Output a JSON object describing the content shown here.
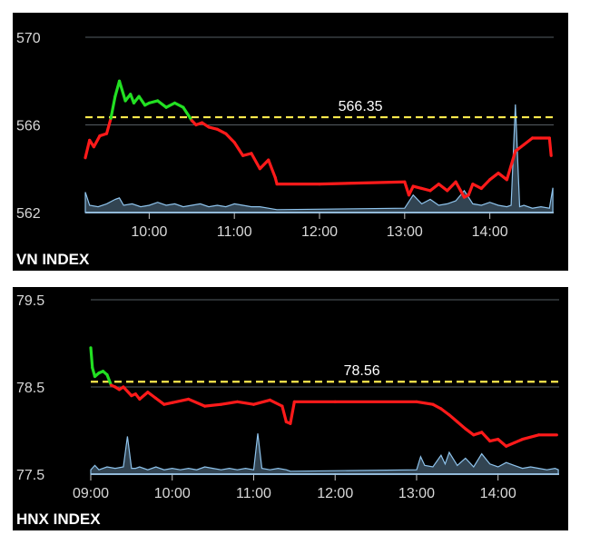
{
  "chart_data": [
    {
      "type": "line",
      "title": "VN INDEX",
      "reference_value": 566.35,
      "reference_label": "566.35",
      "ylim": [
        562,
        570
      ],
      "yticks": [
        562,
        566,
        570
      ],
      "ytick_labels": [
        "562",
        "566",
        "570"
      ],
      "xlim": [
        9.25,
        14.75
      ],
      "xticks": [
        10,
        11,
        12,
        13,
        14
      ],
      "xtick_labels": [
        "10:00",
        "11:00",
        "12:00",
        "13:00",
        "14:00"
      ],
      "grid": "horizontal",
      "colors": {
        "up": "#22e022",
        "down": "#ff1a1a",
        "reference": "#ffe94d",
        "volume": "#8ec3ec"
      },
      "series": [
        {
          "kind": "price",
          "x": [
            9.25,
            9.3,
            9.35,
            9.42,
            9.5,
            9.55,
            9.6,
            9.65,
            9.72,
            9.78,
            9.82,
            9.88,
            9.95,
            10.0,
            10.1,
            10.2,
            10.3,
            10.4,
            10.5,
            10.55,
            10.62,
            10.7,
            10.8,
            10.9,
            11.0,
            11.1,
            11.2,
            11.3,
            11.4,
            11.48,
            11.5,
            12.0,
            13.0,
            13.05,
            13.1,
            13.2,
            13.3,
            13.4,
            13.5,
            13.6,
            13.7,
            13.75,
            13.8,
            13.9,
            14.0,
            14.1,
            14.2,
            14.3,
            14.4,
            14.5,
            14.6,
            14.7,
            14.72
          ],
          "y": [
            564.5,
            565.3,
            565.0,
            565.5,
            565.6,
            566.3,
            567.3,
            568.0,
            567.1,
            567.4,
            567.0,
            567.3,
            566.9,
            567.0,
            567.1,
            566.8,
            567.0,
            566.8,
            566.2,
            566.0,
            566.1,
            565.9,
            565.8,
            565.6,
            565.2,
            564.6,
            564.7,
            564.0,
            564.4,
            563.6,
            563.3,
            563.3,
            563.4,
            562.8,
            563.2,
            563.1,
            563.0,
            563.3,
            563.0,
            563.4,
            562.7,
            562.8,
            563.3,
            563.1,
            563.5,
            563.8,
            563.5,
            564.8,
            565.1,
            565.4,
            565.4,
            565.4,
            564.6
          ]
        },
        {
          "kind": "volume",
          "x": [
            9.25,
            9.3,
            9.4,
            9.5,
            9.6,
            9.65,
            9.7,
            9.8,
            9.9,
            10.0,
            10.1,
            10.2,
            10.3,
            10.4,
            10.5,
            10.6,
            10.7,
            10.8,
            10.9,
            11.0,
            11.1,
            11.2,
            11.3,
            11.4,
            11.5,
            13.0,
            13.1,
            13.2,
            13.3,
            13.4,
            13.5,
            13.6,
            13.7,
            13.8,
            13.9,
            14.0,
            14.1,
            14.2,
            14.25,
            14.3,
            14.35,
            14.4,
            14.5,
            14.6,
            14.7,
            14.74
          ],
          "y": [
            1.4,
            0.5,
            0.4,
            0.6,
            0.9,
            1.0,
            0.5,
            0.6,
            0.4,
            0.5,
            0.7,
            0.5,
            0.6,
            0.4,
            0.5,
            0.6,
            0.4,
            0.5,
            0.4,
            0.6,
            0.5,
            0.4,
            0.4,
            0.3,
            0.2,
            0.3,
            1.2,
            0.6,
            0.9,
            0.5,
            0.6,
            0.8,
            1.5,
            0.6,
            0.5,
            0.7,
            0.5,
            0.4,
            0.5,
            7.4,
            0.4,
            0.5,
            0.3,
            0.4,
            0.3,
            1.7
          ]
        }
      ]
    },
    {
      "type": "line",
      "title": "HNX INDEX",
      "reference_value": 78.56,
      "reference_label": "78.56",
      "ylim": [
        77.5,
        79.5
      ],
      "yticks": [
        77.5,
        78.5,
        79.5
      ],
      "ytick_labels": [
        "77.5",
        "78.5",
        "79.5"
      ],
      "xlim": [
        9.0,
        14.75
      ],
      "xticks": [
        9,
        10,
        11,
        12,
        13,
        14
      ],
      "xtick_labels": [
        "09:00",
        "10:00",
        "11:00",
        "12:00",
        "13:00",
        "14:00"
      ],
      "grid": "horizontal",
      "colors": {
        "up": "#22e022",
        "down": "#ff1a1a",
        "reference": "#ffe94d",
        "volume": "#8ec3ec"
      },
      "series": [
        {
          "kind": "price",
          "x": [
            9.0,
            9.02,
            9.05,
            9.1,
            9.15,
            9.2,
            9.25,
            9.3,
            9.35,
            9.4,
            9.5,
            9.55,
            9.6,
            9.7,
            9.8,
            9.9,
            10.0,
            10.2,
            10.4,
            10.6,
            10.8,
            11.0,
            11.2,
            11.35,
            11.4,
            11.45,
            11.5,
            12.0,
            13.0,
            13.2,
            13.3,
            13.4,
            13.5,
            13.6,
            13.7,
            13.8,
            13.9,
            14.0,
            14.1,
            14.2,
            14.3,
            14.5,
            14.72
          ],
          "y": [
            78.95,
            78.72,
            78.62,
            78.66,
            78.68,
            78.64,
            78.52,
            78.5,
            78.47,
            78.5,
            78.4,
            78.42,
            78.36,
            78.44,
            78.37,
            78.3,
            78.32,
            78.36,
            78.28,
            78.3,
            78.33,
            78.3,
            78.35,
            78.28,
            78.1,
            78.08,
            78.33,
            78.33,
            78.33,
            78.3,
            78.25,
            78.18,
            78.1,
            78.02,
            77.95,
            77.98,
            77.88,
            77.9,
            77.82,
            77.86,
            77.9,
            77.95,
            77.95
          ]
        },
        {
          "kind": "volume",
          "x": [
            9.0,
            9.05,
            9.1,
            9.2,
            9.3,
            9.4,
            9.45,
            9.5,
            9.55,
            9.6,
            9.7,
            9.8,
            9.9,
            10.0,
            10.1,
            10.2,
            10.3,
            10.4,
            10.5,
            10.6,
            10.7,
            10.8,
            10.9,
            11.0,
            11.05,
            11.1,
            11.2,
            11.3,
            11.4,
            11.45,
            13.0,
            13.05,
            13.1,
            13.2,
            13.3,
            13.35,
            13.4,
            13.5,
            13.6,
            13.7,
            13.8,
            13.9,
            14.0,
            14.1,
            14.2,
            14.3,
            14.4,
            14.5,
            14.6,
            14.7,
            14.74
          ],
          "y": [
            0.3,
            0.6,
            0.3,
            0.5,
            0.4,
            0.5,
            2.6,
            0.4,
            0.4,
            0.5,
            0.3,
            0.5,
            0.3,
            0.4,
            0.3,
            0.4,
            0.3,
            0.5,
            0.4,
            0.3,
            0.4,
            0.3,
            0.4,
            0.3,
            2.8,
            0.4,
            0.3,
            0.4,
            0.3,
            0.2,
            0.3,
            1.2,
            0.6,
            0.5,
            1.3,
            0.7,
            1.5,
            0.6,
            1.1,
            0.5,
            1.4,
            0.7,
            0.5,
            0.8,
            0.6,
            0.4,
            0.5,
            0.4,
            0.3,
            0.4,
            0.3
          ]
        }
      ]
    }
  ]
}
